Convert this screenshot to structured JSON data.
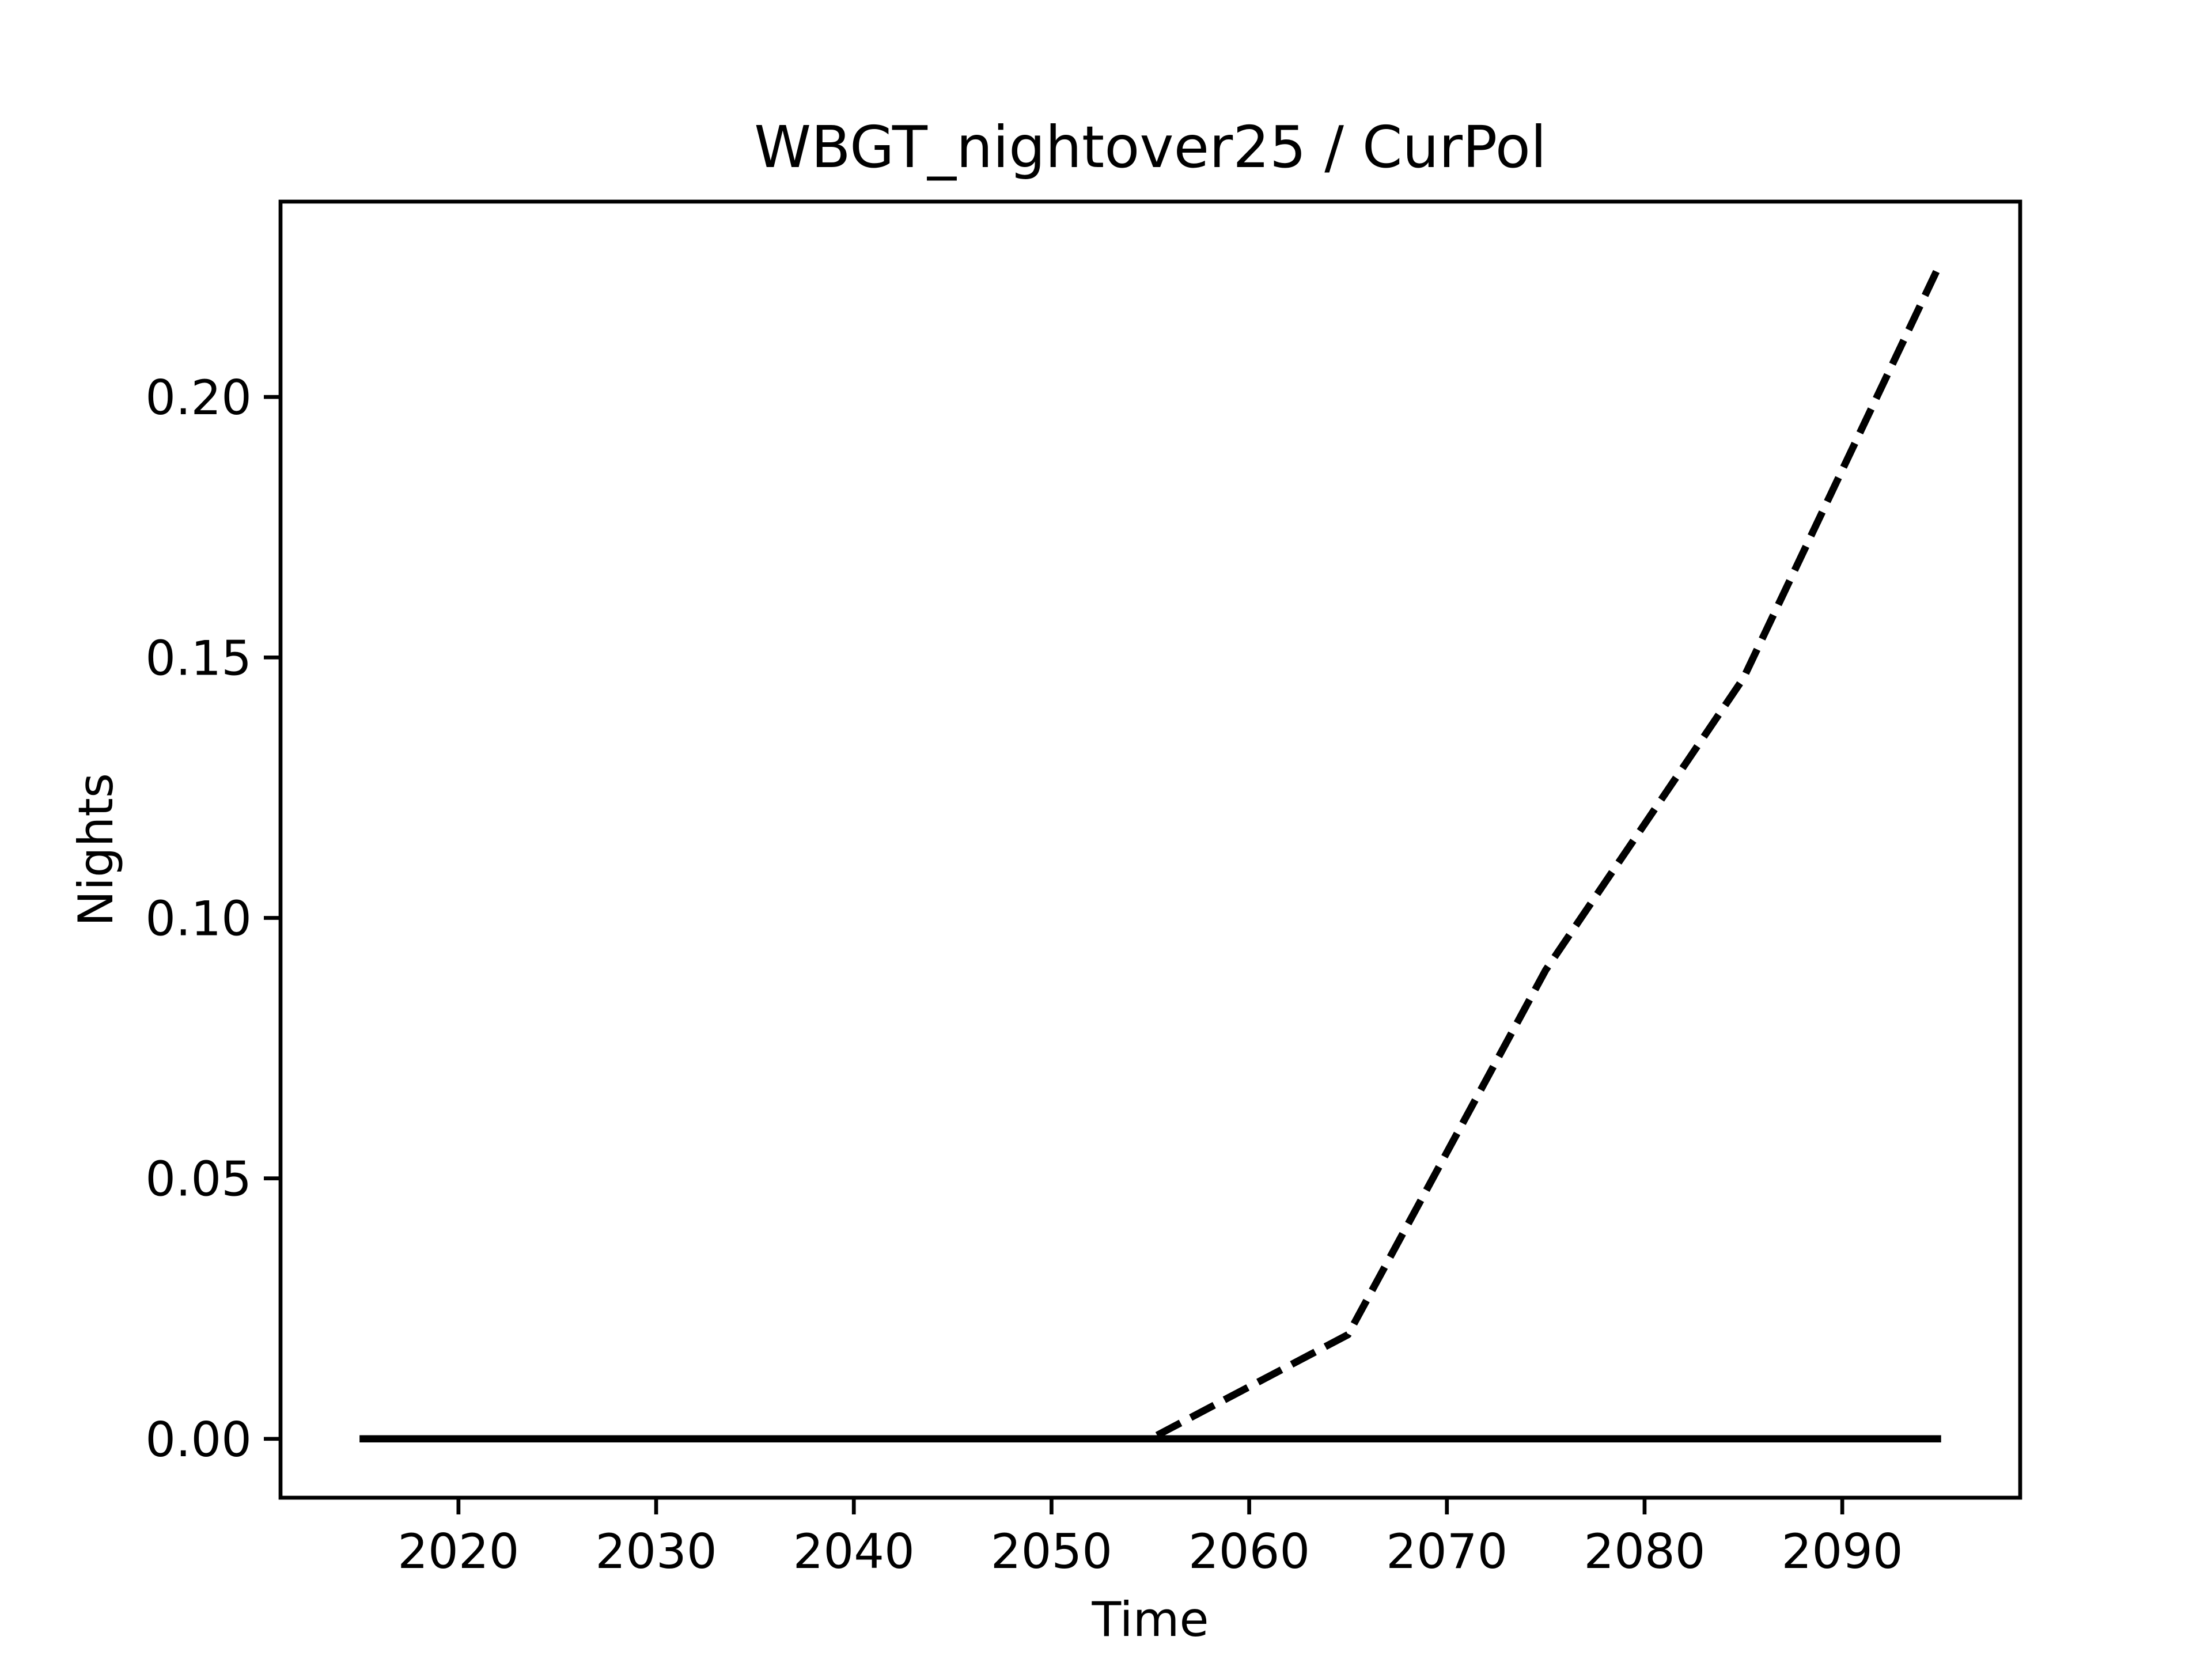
{
  "chart_data": {
    "type": "line",
    "title": "WBGT_nightover25 / CurPol",
    "x_label": "Time",
    "y_label": "Nights",
    "x": [
      2015,
      2025,
      2035,
      2045,
      2055,
      2065,
      2075,
      2085,
      2095
    ],
    "series": [
      {
        "color": "#000000",
        "linestyle": "dashed",
        "values": [
          0,
          0,
          0,
          0,
          0,
          0.02,
          0.09,
          0.146,
          0.226
        ]
      },
      {
        "color": "#000000",
        "linestyle": "solid",
        "values": [
          0,
          0,
          0,
          0,
          0,
          0,
          0,
          0,
          0
        ]
      }
    ],
    "xlim": [
      2011,
      2099
    ],
    "xticks": [
      2020,
      2030,
      2040,
      2050,
      2060,
      2070,
      2080,
      2090
    ],
    "ylim": [
      -0.0113,
      0.2375
    ],
    "yticks": [
      {
        "value": 0,
        "label": "0.00"
      },
      {
        "value": 0.05,
        "label": "0.05"
      },
      {
        "value": 0.1,
        "label": "0.10"
      },
      {
        "value": 0.15,
        "label": "0.15"
      },
      {
        "value": 0.2,
        "label": "0.20"
      }
    ],
    "grid": false
  }
}
